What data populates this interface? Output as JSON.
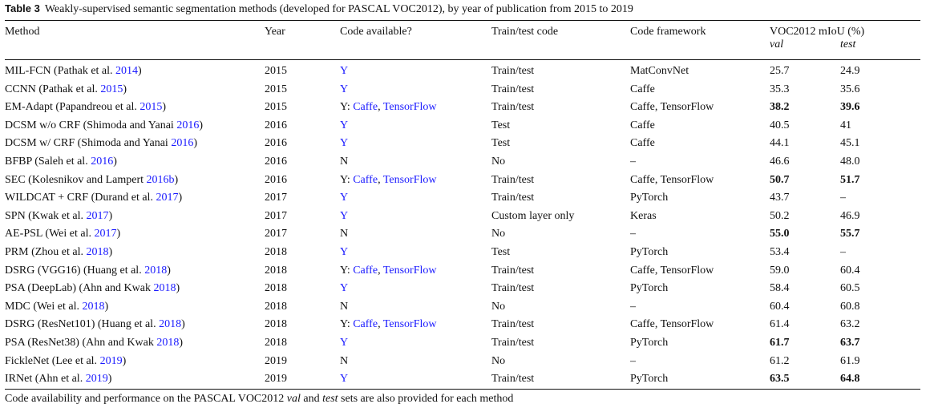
{
  "caption": {
    "label": "Table 3",
    "text": "Weakly-supervised semantic segmentation methods (developed for PASCAL VOC2012), by year of publication from 2015 to 2019"
  },
  "headers": {
    "method": "Method",
    "year": "Year",
    "code": "Code available?",
    "train": "Train/test code",
    "framework": "Code framework",
    "miou": "VOC2012 mIoU (%)",
    "val": "val",
    "test": "test"
  },
  "rows": [
    {
      "method": "MIL-FCN (Pathak et al. ",
      "cite": "2014",
      "year": "2015",
      "code_prefix": "",
      "code": "Y",
      "code2": "",
      "train": "Train/test",
      "framework": "MatConvNet",
      "val": "25.7",
      "test": "24.9",
      "val_bold": false,
      "test_bold": false
    },
    {
      "method": "CCNN (Pathak et al. ",
      "cite": "2015",
      "year": "2015",
      "code_prefix": "",
      "code": "Y",
      "code2": "",
      "train": "Train/test",
      "framework": "Caffe",
      "val": "35.3",
      "test": "35.6",
      "val_bold": false,
      "test_bold": false
    },
    {
      "method": "EM-Adapt (Papandreou et al. ",
      "cite": "2015",
      "year": "2015",
      "code_prefix": "Y: ",
      "code": "Caffe",
      "code2": "TensorFlow",
      "train": "Train/test",
      "framework": "Caffe, TensorFlow",
      "val": "38.2",
      "test": "39.6",
      "val_bold": true,
      "test_bold": true
    },
    {
      "method": "DCSM w/o CRF (Shimoda and Yanai ",
      "cite": "2016",
      "year": "2016",
      "code_prefix": "",
      "code": "Y",
      "code2": "",
      "train": "Test",
      "framework": "Caffe",
      "val": "40.5",
      "test": "41",
      "val_bold": false,
      "test_bold": false
    },
    {
      "method": "DCSM w/ CRF (Shimoda and Yanai ",
      "cite": "2016",
      "year": "2016",
      "code_prefix": "",
      "code": "Y",
      "code2": "",
      "train": "Test",
      "framework": "Caffe",
      "val": "44.1",
      "test": "45.1",
      "val_bold": false,
      "test_bold": false
    },
    {
      "method": "BFBP (Saleh et al. ",
      "cite": "2016",
      "year": "2016",
      "code_prefix": "N",
      "code": "",
      "code2": "",
      "train": "No",
      "framework": "–",
      "val": "46.6",
      "test": "48.0",
      "val_bold": false,
      "test_bold": false
    },
    {
      "method": "SEC (Kolesnikov and Lampert ",
      "cite": "2016b",
      "year": "2016",
      "code_prefix": "Y: ",
      "code": "Caffe",
      "code2": "TensorFlow",
      "train": "Train/test",
      "framework": "Caffe, TensorFlow",
      "val": "50.7",
      "test": "51.7",
      "val_bold": true,
      "test_bold": true
    },
    {
      "method": "WILDCAT + CRF (Durand et al. ",
      "cite": "2017",
      "year": "2017",
      "code_prefix": "",
      "code": "Y",
      "code2": "",
      "train": "Train/test",
      "framework": "PyTorch",
      "val": "43.7",
      "test": "–",
      "val_bold": false,
      "test_bold": false
    },
    {
      "method": "SPN (Kwak et al. ",
      "cite": "2017",
      "year": "2017",
      "code_prefix": "",
      "code": "Y",
      "code2": "",
      "train": "Custom layer only",
      "framework": "Keras",
      "val": "50.2",
      "test": "46.9",
      "val_bold": false,
      "test_bold": false
    },
    {
      "method": "AE-PSL (Wei et al. ",
      "cite": "2017",
      "year": "2017",
      "code_prefix": "N",
      "code": "",
      "code2": "",
      "train": "No",
      "framework": "–",
      "val": "55.0",
      "test": "55.7",
      "val_bold": true,
      "test_bold": true
    },
    {
      "method": "PRM (Zhou et al. ",
      "cite": "2018",
      "year": "2018",
      "code_prefix": "",
      "code": "Y",
      "code2": "",
      "train": "Test",
      "framework": "PyTorch",
      "val": "53.4",
      "test": "–",
      "val_bold": false,
      "test_bold": false
    },
    {
      "method": "DSRG (VGG16) (Huang et al. ",
      "cite": "2018",
      "year": "2018",
      "code_prefix": "Y: ",
      "code": "Caffe",
      "code2": "TensorFlow",
      "train": "Train/test",
      "framework": "Caffe, TensorFlow",
      "val": "59.0",
      "test": "60.4",
      "val_bold": false,
      "test_bold": false
    },
    {
      "method": "PSA (DeepLab) (Ahn and Kwak ",
      "cite": "2018",
      "year": "2018",
      "code_prefix": "",
      "code": "Y",
      "code2": "",
      "train": "Train/test",
      "framework": "PyTorch",
      "val": "58.4",
      "test": "60.5",
      "val_bold": false,
      "test_bold": false
    },
    {
      "method": "MDC (Wei et al. ",
      "cite": "2018",
      "year": "2018",
      "code_prefix": "N",
      "code": "",
      "code2": "",
      "train": "No",
      "framework": "–",
      "val": "60.4",
      "test": "60.8",
      "val_bold": false,
      "test_bold": false
    },
    {
      "method": "DSRG (ResNet101) (Huang et al. ",
      "cite": "2018",
      "year": "2018",
      "code_prefix": "Y: ",
      "code": "Caffe",
      "code2": "TensorFlow",
      "train": "Train/test",
      "framework": "Caffe, TensorFlow",
      "val": "61.4",
      "test": "63.2",
      "val_bold": false,
      "test_bold": false
    },
    {
      "method": "PSA (ResNet38) (Ahn and Kwak ",
      "cite": "2018",
      "year": "2018",
      "code_prefix": "",
      "code": "Y",
      "code2": "",
      "train": "Train/test",
      "framework": "PyTorch",
      "val": "61.7",
      "test": "63.7",
      "val_bold": true,
      "test_bold": true
    },
    {
      "method": "FickleNet (Lee et al. ",
      "cite": "2019",
      "year": "2019",
      "code_prefix": "N",
      "code": "",
      "code2": "",
      "train": "No",
      "framework": "–",
      "val": "61.2",
      "test": "61.9",
      "val_bold": false,
      "test_bold": false
    },
    {
      "method": "IRNet (Ahn et al. ",
      "cite": "2019",
      "year": "2019",
      "code_prefix": "",
      "code": "Y",
      "code2": "",
      "train": "Train/test",
      "framework": "PyTorch",
      "val": "63.5",
      "test": "64.8",
      "val_bold": true,
      "test_bold": true
    }
  ],
  "footnote": {
    "pre": "Code availability and performance on the PASCAL VOC2012 ",
    "val": "val",
    "mid": " and ",
    "test": "test",
    "post": " sets are also provided for each method"
  },
  "colors": {
    "link": "#1a1aff",
    "text": "#111111",
    "rule": "#111111"
  }
}
